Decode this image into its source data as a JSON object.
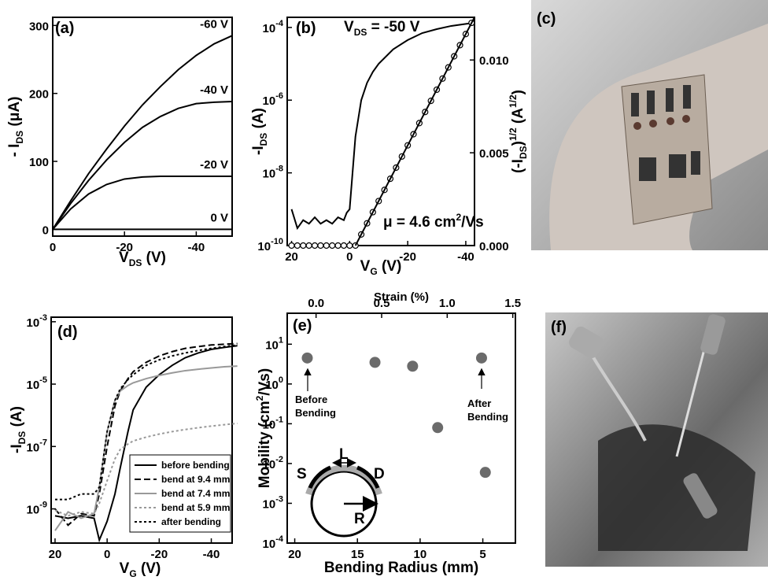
{
  "chart_data": [
    {
      "type": "line",
      "panel_label": "(a)",
      "x_label": [
        {
          "text": "V"
        },
        {
          "text": "DS",
          "sub": true
        },
        {
          "text": " (V)"
        }
      ],
      "y_label": [
        {
          "text": "- I"
        },
        {
          "text": "DS",
          "sub": true
        },
        {
          "text": " (μA)"
        }
      ],
      "xlim": [
        0,
        -50
      ],
      "ylim": [
        -10,
        312
      ],
      "xticks": [
        0,
        -20,
        -40
      ],
      "yticks": [
        0,
        100,
        200,
        300
      ],
      "x": [
        0,
        -5,
        -10,
        -15,
        -20,
        -25,
        -30,
        -35,
        -40,
        -45,
        -50
      ],
      "series": [
        {
          "name": "-60 V",
          "color": "#000000",
          "values": [
            0,
            42,
            82,
            118,
            152,
            183,
            210,
            235,
            256,
            273,
            285
          ]
        },
        {
          "name": "-40 V",
          "color": "#000000",
          "values": [
            0,
            38,
            72,
            102,
            128,
            150,
            166,
            178,
            185,
            187,
            188
          ]
        },
        {
          "name": "-20 V",
          "color": "#000000",
          "values": [
            0,
            30,
            52,
            66,
            74,
            77,
            78,
            78,
            78,
            78,
            78
          ]
        },
        {
          "name": "0 V",
          "color": "#000000",
          "values": [
            0,
            0,
            0,
            0,
            0,
            0,
            0,
            0,
            0,
            0,
            0
          ]
        }
      ]
    },
    {
      "type": "line",
      "panel_label": "(b)",
      "ylog": true,
      "x_label": [
        {
          "text": "V"
        },
        {
          "text": "G",
          "sub": true
        },
        {
          "text": " (V)"
        }
      ],
      "y_label": [
        {
          "text": "-I"
        },
        {
          "text": "DS",
          "sub": true
        },
        {
          "text": " (A)"
        }
      ],
      "y2_label": [
        {
          "text": "(-I"
        },
        {
          "text": "DS",
          "sub": true
        },
        {
          "text": ")"
        },
        {
          "text": "1/2",
          "sup": true
        },
        {
          "text": " (A"
        },
        {
          "text": "1/2",
          "sup": true
        },
        {
          "text": ")"
        }
      ],
      "annotations": [
        [
          {
            "text": "V"
          },
          {
            "text": "DS",
            "sub": true
          },
          {
            "text": " = -50 V"
          }
        ],
        [
          {
            "text": "μ = 4.6 cm"
          },
          {
            "text": "2",
            "sup": true
          },
          {
            "text": "/Vs"
          }
        ]
      ],
      "xlim": [
        21.5,
        -43
      ],
      "ylim": [
        1e-10,
        0.00019
      ],
      "y2lim": [
        0,
        0.0123
      ],
      "xticks": [
        20,
        0,
        -20,
        -40
      ],
      "yticks": [
        {
          "value": 1e-10,
          "label": "10",
          "exp": "-10"
        },
        {
          "value": 1e-08,
          "label": "10",
          "exp": "-8"
        },
        {
          "value": 1e-06,
          "label": "10",
          "exp": "-6"
        },
        {
          "value": 0.0001,
          "label": "10",
          "exp": "-4"
        }
      ],
      "y2ticks": [
        {
          "value": 0,
          "label": "0.000"
        },
        {
          "value": 0.005,
          "label": "0.005"
        },
        {
          "value": 0.01,
          "label": "0.010"
        }
      ],
      "series": [
        {
          "color": "#000000",
          "x": [
            20,
            18,
            16,
            14,
            12,
            10,
            8,
            6,
            4,
            2,
            1,
            0,
            -1,
            -2,
            -4,
            -6,
            -8,
            -10,
            -15,
            -20,
            -25,
            -30,
            -35,
            -40,
            -43
          ],
          "values": [
            1e-09,
            3e-10,
            5e-10,
            4e-10,
            6e-10,
            4e-10,
            5e-10,
            4e-10,
            6e-10,
            5e-10,
            8e-10,
            1e-09,
            1e-08,
            1e-07,
            1e-06,
            3e-06,
            6e-06,
            1e-05,
            2.5e-05,
            4.5e-05,
            7e-05,
            9e-05,
            0.00011,
            0.000125,
            0.000135
          ]
        },
        {
          "color": "#000000",
          "marker": "circle",
          "axis": "y2",
          "x": [
            20,
            18,
            16,
            14,
            12,
            10,
            8,
            6,
            4,
            2,
            0,
            -2,
            -4,
            -6,
            -8,
            -10,
            -12,
            -14,
            -16,
            -18,
            -20,
            -22,
            -24,
            -26,
            -28,
            -30,
            -32,
            -34,
            -36,
            -38,
            -40,
            -42
          ],
          "values": [
            0,
            0,
            0,
            0,
            0,
            0,
            0,
            0,
            0,
            0,
            0,
            0,
            0.0006,
            0.0012,
            0.0018,
            0.0024,
            0.003,
            0.0036,
            0.0042,
            0.0048,
            0.0054,
            0.006,
            0.0066,
            0.0072,
            0.0078,
            0.0084,
            0.009,
            0.0096,
            0.0102,
            0.0108,
            0.0114,
            0.012
          ]
        },
        {
          "color": "#000000",
          "axis": "y2",
          "x": [
            -2,
            -43
          ],
          "values": [
            0,
            0.0123
          ]
        }
      ]
    },
    {
      "type": "line",
      "panel_label": "(d)",
      "ylog": true,
      "legend": "lower right",
      "x_label": [
        {
          "text": "V"
        },
        {
          "text": "G",
          "sub": true
        },
        {
          "text": " (V)"
        }
      ],
      "y_label": [
        {
          "text": "-I"
        },
        {
          "text": "DS",
          "sub": true
        },
        {
          "text": " (A)"
        }
      ],
      "xlim": [
        21.5,
        -48
      ],
      "ylim": [
        8e-11,
        0.0014
      ],
      "xticks": [
        20,
        0,
        -20,
        -40
      ],
      "yticks": [
        {
          "value": 1e-09,
          "label": "10",
          "exp": "-9"
        },
        {
          "value": 1e-07,
          "label": "10",
          "exp": "-7"
        },
        {
          "value": 1e-05,
          "label": "10",
          "exp": "-5"
        },
        {
          "value": 0.001,
          "label": "10",
          "exp": "-3"
        }
      ],
      "x": [
        20,
        15,
        10,
        5,
        3,
        0,
        -3,
        -5,
        -8,
        -10,
        -15,
        -20,
        -25,
        -30,
        -35,
        -40,
        -45,
        -50
      ],
      "series": [
        {
          "name": "before  bending",
          "color": "#000000",
          "style": "solid",
          "values": [
            6e-10,
            5e-10,
            6e-10,
            5e-10,
            1e-10,
            4e-10,
            3e-09,
            2e-08,
            3e-07,
            1.5e-06,
            8e-06,
            2e-05,
            4e-05,
            7e-05,
            0.0001,
            0.00013,
            0.00015,
            0.00017
          ]
        },
        {
          "name": "bend at  9.4 mm",
          "color": "#000000",
          "style": "dashed",
          "values": [
            1e-09,
            3e-10,
            7e-10,
            6e-10,
            3e-09,
            1e-07,
            2e-06,
            6e-06,
            1.5e-05,
            2.5e-05,
            5e-05,
            8e-05,
            0.00011,
            0.00014,
            0.00016,
            0.00018,
            0.00019,
            0.0002
          ]
        },
        {
          "name": "bend at  7.4 mm",
          "color": "#999999",
          "style": "solid",
          "values": [
            2e-10,
            8e-10,
            5e-10,
            7e-10,
            5e-09,
            3e-07,
            3e-06,
            6e-06,
            9e-06,
            1.1e-05,
            1.5e-05,
            1.9e-05,
            2.3e-05,
            2.7e-05,
            3e-05,
            3.3e-05,
            3.6e-05,
            3.8e-05
          ]
        },
        {
          "name": "bend at  5.9 mm",
          "color": "#999999",
          "style": "dotted",
          "values": [
            9e-10,
            6e-10,
            8e-10,
            7e-10,
            1.5e-09,
            8e-09,
            4e-08,
            8e-08,
            1.2e-07,
            1.5e-07,
            2e-07,
            2.5e-07,
            3e-07,
            3.5e-07,
            4e-07,
            4.5e-07,
            5e-07,
            5.5e-07
          ]
        },
        {
          "name": "after  bending",
          "color": "#000000",
          "style": "dotted",
          "values": [
            2e-09,
            2e-09,
            3e-09,
            3e-09,
            5e-09,
            3e-07,
            3e-06,
            7e-06,
            1.4e-05,
            2e-05,
            4e-05,
            6e-05,
            8e-05,
            0.0001,
            0.00012,
            0.00014,
            0.00016,
            0.00018
          ]
        }
      ]
    },
    {
      "type": "scatter",
      "panel_label": "(e)",
      "ylog": true,
      "color": "#6b6b6b",
      "x_label": [
        {
          "text": "Bending Radius (mm)"
        }
      ],
      "x2_label": [
        {
          "text": "Strain (%)"
        }
      ],
      "y_label": [
        {
          "text": "Mobility (cm"
        },
        {
          "text": "2",
          "sup": true
        },
        {
          "text": "/Vs)"
        }
      ],
      "annotations": [
        [
          "Before",
          "Bending"
        ],
        [
          "After",
          "Bending"
        ]
      ],
      "inset_labels": [
        "S",
        "L",
        "D",
        "R"
      ],
      "xlim": [
        20.6,
        2.4
      ],
      "x2lim": [
        -0.22,
        1.52
      ],
      "ylim": [
        0.0001,
        60
      ],
      "xticks": [
        20,
        15,
        10,
        5
      ],
      "x2ticks": [
        {
          "value": 0,
          "label": "0.0"
        },
        0.5,
        {
          "value": 1,
          "label": "1.0"
        },
        1.5
      ],
      "yticks": [
        {
          "value": 0.0001,
          "label": "10",
          "exp": "-4"
        },
        {
          "value": 0.001,
          "label": "10",
          "exp": "-3"
        },
        {
          "value": 0.01,
          "label": "10",
          "exp": "-2"
        },
        {
          "value": 0.1,
          "label": "10",
          "exp": "-1"
        },
        {
          "value": 1,
          "label": "10",
          "exp": "0"
        },
        {
          "value": 10,
          "label": "10",
          "exp": "1"
        }
      ],
      "x": [
        19,
        13.6,
        10.6,
        8.6,
        4.8,
        5.1
      ],
      "values": [
        4.5,
        3.5,
        2.8,
        0.08,
        0.006,
        4.5
      ]
    }
  ],
  "photos": [
    {
      "label": "(c)"
    },
    {
      "label": "(f)"
    }
  ]
}
